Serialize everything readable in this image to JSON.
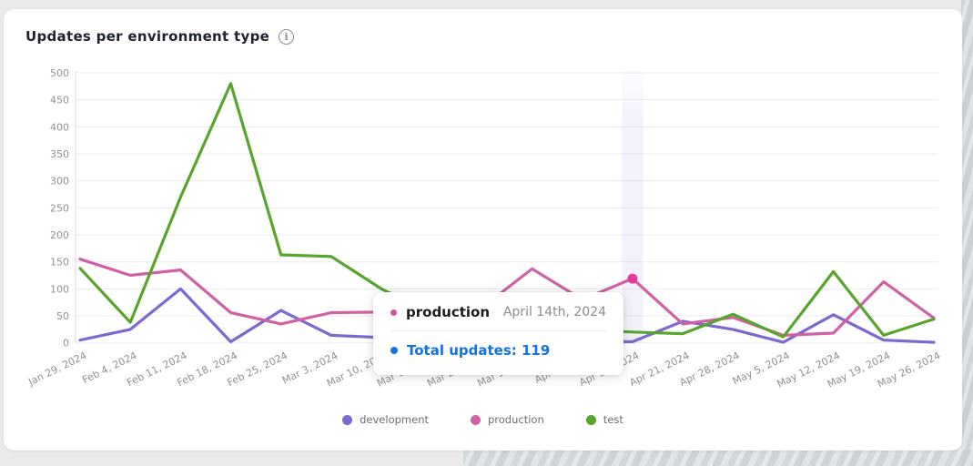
{
  "page": {
    "title": "Updates per environment type",
    "info_icon_glyph": "i"
  },
  "tooltip": {
    "series": "production",
    "date": "April 14th, 2024",
    "total_label": "Total updates:",
    "total_value": "119",
    "accent_color": "#1372e4",
    "series_dot_color": "#d4539e"
  },
  "chart_data": {
    "type": "line",
    "title": "Updates per environment type",
    "categories": [
      "Jan 29, 2024",
      "Feb 4, 2024",
      "Feb 11, 2024",
      "Feb 18, 2024",
      "Feb 25, 2024",
      "Mar 3, 2024",
      "Mar 10, 2024",
      "Mar 17, 2024",
      "Mar 24, 2024",
      "Mar 31, 2024",
      "Apr 7, 2024",
      "Apr 14, 2024",
      "Apr 21, 2024",
      "Apr 28, 2024",
      "May 5, 2024",
      "May 12, 2024",
      "May 19, 2024",
      "May 26, 2024"
    ],
    "series": [
      {
        "name": "development",
        "color": "#7d68d2",
        "values": [
          5,
          25,
          100,
          2,
          60,
          14,
          10,
          18,
          30,
          15,
          3,
          2,
          40,
          25,
          1,
          52,
          5,
          1
        ]
      },
      {
        "name": "production",
        "color": "#d160a6",
        "values": [
          155,
          125,
          135,
          56,
          35,
          56,
          57,
          50,
          65,
          137,
          80,
          119,
          35,
          47,
          14,
          18,
          113,
          46
        ]
      },
      {
        "name": "test",
        "color": "#57a52d",
        "values": [
          138,
          38,
          270,
          480,
          163,
          160,
          100,
          55,
          30,
          25,
          24,
          20,
          17,
          53,
          11,
          132,
          14,
          44
        ]
      }
    ],
    "ylim": [
      0,
      500
    ],
    "ytick_step": 50,
    "grid": "horizontal",
    "legend_position": "bottom",
    "highlighted": {
      "series": "production",
      "category": "Apr 14, 2024",
      "value": 119,
      "point_color": "#e23ba0",
      "band_color": "#8673df"
    }
  }
}
